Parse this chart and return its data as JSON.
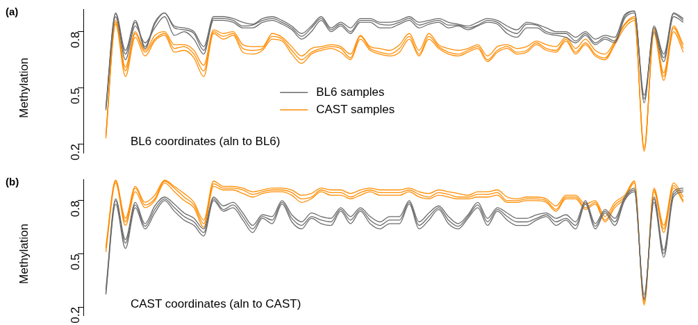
{
  "chart_data": [
    {
      "type": "line",
      "title": "(a)",
      "ylabel": "Methylation",
      "annotations": [
        "BL6 coordinates (aln to BL6)"
      ],
      "legend": "center",
      "tick_labels": "y",
      "ylim": [
        0.15,
        0.92
      ],
      "yticks": [
        0.2,
        0.5,
        0.8
      ],
      "marker": "none",
      "categories": [
        null,
        null,
        null,
        null,
        null,
        null,
        null,
        null,
        null,
        null,
        null,
        null,
        null,
        null,
        null,
        null,
        null,
        null,
        null,
        null,
        null,
        null,
        null,
        null,
        null,
        null,
        null,
        null,
        null,
        null,
        null,
        null,
        null,
        null,
        null,
        null,
        null,
        null,
        null,
        null,
        null,
        null,
        null,
        null,
        null,
        null,
        null,
        null,
        null,
        null,
        null,
        null,
        null,
        null,
        null,
        null,
        null,
        null,
        null,
        null
      ],
      "series": [
        {
          "name": "BL6 samples",
          "color": "#6b6b6b",
          "values": [
            0.39,
            0.895,
            0.68,
            0.85,
            0.71,
            0.84,
            0.9,
            0.82,
            0.81,
            0.79,
            0.7,
            0.87,
            0.87,
            0.86,
            0.83,
            0.835,
            0.86,
            0.87,
            0.85,
            0.82,
            0.775,
            0.82,
            0.87,
            0.81,
            0.84,
            0.8,
            0.86,
            0.86,
            0.84,
            0.835,
            0.85,
            0.87,
            0.835,
            0.85,
            0.86,
            0.835,
            0.835,
            0.82,
            0.835,
            0.86,
            0.85,
            0.81,
            0.79,
            0.84,
            0.835,
            0.8,
            0.79,
            0.79,
            0.75,
            0.79,
            0.74,
            0.77,
            0.75,
            0.88,
            0.91,
            0.44,
            0.82,
            0.66,
            0.895,
            0.86
          ]
        },
        {
          "color": "#6b6b6b",
          "values": [
            0.38,
            0.88,
            0.65,
            0.83,
            0.74,
            0.82,
            0.88,
            0.78,
            0.8,
            0.76,
            0.68,
            0.86,
            0.86,
            0.85,
            0.82,
            0.82,
            0.85,
            0.86,
            0.84,
            0.81,
            0.76,
            0.8,
            0.86,
            0.8,
            0.83,
            0.79,
            0.85,
            0.85,
            0.82,
            0.82,
            0.84,
            0.86,
            0.82,
            0.84,
            0.85,
            0.82,
            0.83,
            0.81,
            0.83,
            0.85,
            0.84,
            0.79,
            0.77,
            0.82,
            0.82,
            0.79,
            0.78,
            0.77,
            0.74,
            0.78,
            0.73,
            0.76,
            0.74,
            0.87,
            0.9,
            0.46,
            0.8,
            0.64,
            0.88,
            0.85
          ]
        },
        {
          "color": "#6b6b6b",
          "values": [
            0.4,
            0.9,
            0.7,
            0.86,
            0.72,
            0.85,
            0.9,
            0.83,
            0.82,
            0.8,
            0.72,
            0.88,
            0.88,
            0.87,
            0.85,
            0.84,
            0.87,
            0.88,
            0.86,
            0.83,
            0.79,
            0.83,
            0.88,
            0.82,
            0.85,
            0.82,
            0.87,
            0.87,
            0.85,
            0.85,
            0.86,
            0.88,
            0.85,
            0.86,
            0.87,
            0.85,
            0.84,
            0.83,
            0.85,
            0.87,
            0.86,
            0.83,
            0.81,
            0.85,
            0.84,
            0.82,
            0.8,
            0.8,
            0.77,
            0.8,
            0.76,
            0.78,
            0.77,
            0.89,
            0.91,
            0.42,
            0.83,
            0.68,
            0.9,
            0.87
          ]
        },
        {
          "name": "CAST samples",
          "color": "#ff8c00",
          "values": [
            0.23,
            0.85,
            0.59,
            0.79,
            0.69,
            0.76,
            0.79,
            0.71,
            0.72,
            0.68,
            0.59,
            0.8,
            0.775,
            0.79,
            0.71,
            0.7,
            0.71,
            0.775,
            0.76,
            0.7,
            0.65,
            0.69,
            0.71,
            0.72,
            0.71,
            0.66,
            0.775,
            0.71,
            0.69,
            0.68,
            0.71,
            0.775,
            0.68,
            0.775,
            0.72,
            0.69,
            0.68,
            0.7,
            0.72,
            0.65,
            0.7,
            0.72,
            0.69,
            0.7,
            0.74,
            0.71,
            0.7,
            0.76,
            0.69,
            0.74,
            0.68,
            0.66,
            0.74,
            0.835,
            0.87,
            0.16,
            0.81,
            0.56,
            0.82,
            0.71
          ]
        },
        {
          "color": "#ff8c00",
          "values": [
            0.24,
            0.84,
            0.56,
            0.77,
            0.67,
            0.75,
            0.78,
            0.69,
            0.7,
            0.66,
            0.56,
            0.79,
            0.76,
            0.78,
            0.69,
            0.68,
            0.7,
            0.76,
            0.75,
            0.68,
            0.63,
            0.68,
            0.7,
            0.71,
            0.69,
            0.65,
            0.76,
            0.7,
            0.68,
            0.67,
            0.69,
            0.76,
            0.67,
            0.76,
            0.71,
            0.68,
            0.67,
            0.69,
            0.71,
            0.64,
            0.69,
            0.71,
            0.68,
            0.69,
            0.73,
            0.7,
            0.69,
            0.75,
            0.68,
            0.73,
            0.67,
            0.65,
            0.73,
            0.82,
            0.86,
            0.18,
            0.79,
            0.54,
            0.8,
            0.69
          ]
        },
        {
          "color": "#ff8c00",
          "values": [
            0.25,
            0.86,
            0.61,
            0.8,
            0.7,
            0.78,
            0.8,
            0.73,
            0.73,
            0.7,
            0.62,
            0.81,
            0.79,
            0.8,
            0.73,
            0.72,
            0.72,
            0.79,
            0.77,
            0.72,
            0.67,
            0.71,
            0.72,
            0.73,
            0.72,
            0.68,
            0.78,
            0.72,
            0.71,
            0.7,
            0.73,
            0.79,
            0.7,
            0.79,
            0.73,
            0.71,
            0.7,
            0.71,
            0.73,
            0.67,
            0.72,
            0.73,
            0.71,
            0.72,
            0.75,
            0.73,
            0.72,
            0.77,
            0.71,
            0.76,
            0.7,
            0.68,
            0.75,
            0.84,
            0.88,
            0.17,
            0.82,
            0.58,
            0.83,
            0.73
          ]
        }
      ]
    },
    {
      "type": "line",
      "title": "(b)",
      "ylabel": "Methylation",
      "annotations": [
        "CAST coordinates (aln to CAST)"
      ],
      "tick_labels": "y",
      "ylim": [
        0.15,
        0.92
      ],
      "yticks": [
        0.2,
        0.5,
        0.8
      ],
      "marker": "none",
      "categories": [
        null,
        null,
        null,
        null,
        null,
        null,
        null,
        null,
        null,
        null,
        null,
        null,
        null,
        null,
        null,
        null,
        null,
        null,
        null,
        null,
        null,
        null,
        null,
        null,
        null,
        null,
        null,
        null,
        null,
        null,
        null,
        null,
        null,
        null,
        null,
        null,
        null,
        null,
        null,
        null,
        null,
        null,
        null,
        null,
        null,
        null,
        null,
        null,
        null,
        null,
        null,
        null,
        null,
        null,
        null,
        null,
        null,
        null,
        null,
        null
      ],
      "series": [
        {
          "color": "#6b6b6b",
          "values": [
            0.28,
            0.8,
            0.56,
            0.775,
            0.655,
            0.75,
            0.81,
            0.76,
            0.71,
            0.68,
            0.62,
            0.81,
            0.75,
            0.775,
            0.71,
            0.64,
            0.71,
            0.69,
            0.79,
            0.7,
            0.66,
            0.71,
            0.69,
            0.68,
            0.75,
            0.69,
            0.75,
            0.69,
            0.66,
            0.69,
            0.69,
            0.79,
            0.66,
            0.71,
            0.76,
            0.69,
            0.655,
            0.71,
            0.775,
            0.68,
            0.75,
            0.71,
            0.68,
            0.68,
            0.7,
            0.72,
            0.68,
            0.7,
            0.66,
            0.79,
            0.655,
            0.74,
            0.68,
            0.81,
            0.86,
            0.25,
            0.81,
            0.5,
            0.835,
            0.86
          ]
        },
        {
          "color": "#6b6b6b",
          "values": [
            0.27,
            0.78,
            0.53,
            0.76,
            0.64,
            0.73,
            0.8,
            0.74,
            0.69,
            0.66,
            0.6,
            0.8,
            0.74,
            0.76,
            0.69,
            0.62,
            0.7,
            0.67,
            0.78,
            0.68,
            0.64,
            0.7,
            0.67,
            0.66,
            0.74,
            0.67,
            0.74,
            0.67,
            0.64,
            0.67,
            0.67,
            0.78,
            0.64,
            0.69,
            0.75,
            0.67,
            0.64,
            0.7,
            0.76,
            0.66,
            0.74,
            0.69,
            0.66,
            0.66,
            0.69,
            0.71,
            0.66,
            0.69,
            0.64,
            0.78,
            0.64,
            0.73,
            0.66,
            0.8,
            0.85,
            0.27,
            0.79,
            0.48,
            0.82,
            0.85
          ]
        },
        {
          "color": "#6b6b6b",
          "values": [
            0.3,
            0.81,
            0.58,
            0.79,
            0.67,
            0.77,
            0.82,
            0.78,
            0.73,
            0.7,
            0.64,
            0.82,
            0.77,
            0.79,
            0.73,
            0.66,
            0.72,
            0.71,
            0.8,
            0.72,
            0.68,
            0.73,
            0.71,
            0.7,
            0.76,
            0.71,
            0.76,
            0.71,
            0.68,
            0.71,
            0.71,
            0.8,
            0.68,
            0.73,
            0.77,
            0.71,
            0.67,
            0.72,
            0.79,
            0.7,
            0.76,
            0.73,
            0.7,
            0.7,
            0.72,
            0.73,
            0.7,
            0.72,
            0.68,
            0.8,
            0.67,
            0.75,
            0.7,
            0.82,
            0.87,
            0.24,
            0.82,
            0.52,
            0.85,
            0.87
          ]
        },
        {
          "color": "#ff8c00",
          "values": [
            0.53,
            0.91,
            0.68,
            0.87,
            0.775,
            0.81,
            0.91,
            0.87,
            0.82,
            0.775,
            0.67,
            0.895,
            0.87,
            0.87,
            0.86,
            0.835,
            0.85,
            0.86,
            0.86,
            0.845,
            0.81,
            0.82,
            0.86,
            0.845,
            0.845,
            0.82,
            0.845,
            0.86,
            0.845,
            0.845,
            0.845,
            0.86,
            0.835,
            0.82,
            0.845,
            0.835,
            0.82,
            0.82,
            0.835,
            0.835,
            0.845,
            0.8,
            0.8,
            0.81,
            0.81,
            0.8,
            0.75,
            0.82,
            0.82,
            0.76,
            0.79,
            0.69,
            0.775,
            0.82,
            0.91,
            0.21,
            0.86,
            0.64,
            0.885,
            0.8
          ]
        },
        {
          "color": "#ff8c00",
          "values": [
            0.51,
            0.9,
            0.66,
            0.85,
            0.76,
            0.8,
            0.9,
            0.85,
            0.8,
            0.76,
            0.65,
            0.88,
            0.86,
            0.86,
            0.84,
            0.82,
            0.84,
            0.85,
            0.85,
            0.83,
            0.79,
            0.81,
            0.85,
            0.83,
            0.83,
            0.81,
            0.83,
            0.85,
            0.83,
            0.83,
            0.83,
            0.85,
            0.82,
            0.81,
            0.83,
            0.82,
            0.81,
            0.81,
            0.82,
            0.82,
            0.83,
            0.79,
            0.79,
            0.8,
            0.8,
            0.79,
            0.74,
            0.81,
            0.81,
            0.75,
            0.78,
            0.68,
            0.76,
            0.81,
            0.9,
            0.23,
            0.85,
            0.62,
            0.87,
            0.79
          ]
        },
        {
          "color": "#ff8c00",
          "values": [
            0.54,
            0.915,
            0.7,
            0.88,
            0.79,
            0.83,
            0.915,
            0.88,
            0.84,
            0.79,
            0.69,
            0.91,
            0.88,
            0.88,
            0.87,
            0.85,
            0.86,
            0.87,
            0.87,
            0.86,
            0.83,
            0.84,
            0.87,
            0.86,
            0.86,
            0.84,
            0.86,
            0.87,
            0.86,
            0.86,
            0.86,
            0.87,
            0.85,
            0.84,
            0.86,
            0.85,
            0.84,
            0.83,
            0.85,
            0.85,
            0.86,
            0.82,
            0.81,
            0.82,
            0.82,
            0.81,
            0.77,
            0.83,
            0.83,
            0.78,
            0.8,
            0.71,
            0.79,
            0.83,
            0.91,
            0.22,
            0.87,
            0.66,
            0.9,
            0.82
          ]
        }
      ]
    }
  ]
}
